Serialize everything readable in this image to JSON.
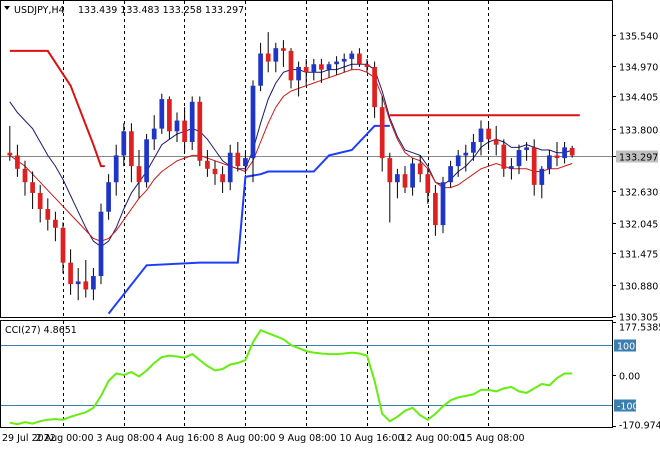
{
  "header": {
    "symbol": "USDJPY,H4",
    "ohlc": "133.439 133.483 133.258 133.297"
  },
  "indicator": {
    "label": "CCI(27) 4.8651",
    "axis_labels": [
      "177.5385",
      "100",
      "0.00",
      "-100",
      "-170.9744"
    ]
  },
  "colors": {
    "bull": "#1f35c8",
    "bear": "#e02020",
    "ma_fast": "#1a1a7a",
    "ma_slow": "#d01818",
    "stop_red": "#dd1111",
    "stop_blue": "#1e3cff",
    "cci": "#66ee11",
    "level_line": "#3a7fb0",
    "grid": "#000000",
    "price_tag": "#c0c0c0"
  },
  "chart_data": [
    {
      "type": "candlestick",
      "title": "USDJPY,H4",
      "ylim": [
        130.305,
        135.9
      ],
      "y_ticks": [
        "135.540",
        "134.970",
        "134.405",
        "133.800",
        "133.297",
        "132.630",
        "132.045",
        "131.475",
        "130.880",
        "130.305"
      ],
      "current_price": "133.297",
      "x_tick_labels": [
        "29 Jul 2022",
        "2 Aug 00:00",
        "3 Aug 08:00",
        "4 Aug 16:00",
        "8 Aug 00:00",
        "9 Aug 08:00",
        "10 Aug 16:00",
        "12 Aug 00:00",
        "15 Aug 08:00"
      ],
      "candles": [
        [
          133.35,
          133.85,
          133.2,
          133.3
        ],
        [
          133.3,
          133.5,
          132.9,
          133.05
        ],
        [
          133.05,
          133.2,
          132.55,
          132.8
        ],
        [
          132.8,
          133.0,
          132.3,
          132.6
        ],
        [
          132.6,
          132.75,
          132.05,
          132.3
        ],
        [
          132.3,
          132.5,
          131.9,
          132.1
        ],
        [
          132.1,
          132.25,
          131.7,
          131.95
        ],
        [
          131.95,
          132.05,
          131.1,
          131.3
        ],
        [
          131.3,
          131.55,
          130.7,
          130.9
        ],
        [
          130.9,
          131.2,
          130.6,
          130.95
        ],
        [
          130.95,
          131.35,
          130.65,
          130.8
        ],
        [
          130.8,
          131.2,
          130.6,
          131.05
        ],
        [
          131.05,
          132.4,
          130.9,
          132.25
        ],
        [
          132.25,
          132.95,
          132.1,
          132.8
        ],
        [
          132.8,
          133.5,
          132.55,
          133.3
        ],
        [
          133.3,
          133.9,
          133.1,
          133.75
        ],
        [
          133.75,
          133.9,
          132.8,
          133.1
        ],
        [
          133.1,
          133.4,
          132.5,
          132.8
        ],
        [
          132.8,
          133.7,
          132.7,
          133.6
        ],
        [
          133.6,
          134.05,
          133.4,
          133.8
        ],
        [
          133.8,
          134.45,
          133.7,
          134.35
        ],
        [
          134.35,
          134.4,
          133.6,
          133.75
        ],
        [
          133.75,
          134.1,
          133.55,
          133.95
        ],
        [
          133.95,
          134.2,
          133.35,
          133.55
        ],
        [
          133.55,
          134.4,
          133.4,
          134.3
        ],
        [
          134.3,
          134.4,
          133.1,
          133.2
        ],
        [
          133.2,
          133.4,
          132.9,
          133.05
        ],
        [
          133.05,
          133.2,
          132.75,
          132.95
        ],
        [
          132.95,
          133.1,
          132.6,
          132.8
        ],
        [
          132.8,
          133.5,
          132.65,
          133.35
        ],
        [
          133.35,
          133.55,
          133.0,
          133.1
        ],
        [
          133.1,
          133.4,
          132.95,
          133.25
        ],
        [
          133.25,
          134.7,
          132.8,
          134.6
        ],
        [
          134.6,
          135.4,
          134.5,
          135.2
        ],
        [
          135.2,
          135.6,
          134.85,
          135.05
        ],
        [
          135.05,
          135.4,
          134.85,
          135.3
        ],
        [
          135.3,
          135.45,
          134.95,
          135.25
        ],
        [
          135.25,
          135.3,
          134.55,
          134.7
        ],
        [
          134.7,
          135.05,
          134.4,
          134.95
        ],
        [
          134.95,
          135.1,
          134.6,
          134.85
        ],
        [
          134.85,
          135.1,
          134.7,
          135.0
        ],
        [
          135.0,
          135.1,
          134.65,
          134.9
        ],
        [
          134.9,
          135.05,
          134.75,
          135.0
        ],
        [
          135.0,
          135.15,
          134.8,
          135.05
        ],
        [
          135.05,
          135.2,
          134.85,
          135.1
        ],
        [
          135.1,
          135.25,
          134.9,
          135.2
        ],
        [
          135.2,
          135.3,
          134.95,
          135.0
        ],
        [
          135.0,
          135.1,
          134.85,
          134.95
        ],
        [
          134.95,
          135.05,
          134.0,
          134.2
        ],
        [
          134.2,
          134.4,
          133.0,
          133.25
        ],
        [
          133.25,
          133.35,
          132.05,
          132.8
        ],
        [
          132.8,
          133.05,
          132.5,
          132.95
        ],
        [
          132.95,
          133.1,
          132.6,
          132.7
        ],
        [
          132.7,
          133.25,
          132.55,
          133.15
        ],
        [
          133.15,
          133.3,
          132.8,
          132.95
        ],
        [
          132.95,
          133.05,
          132.4,
          132.6
        ],
        [
          132.6,
          132.75,
          131.8,
          132.0
        ],
        [
          132.0,
          132.9,
          131.85,
          132.8
        ],
        [
          132.8,
          133.2,
          132.7,
          133.1
        ],
        [
          133.1,
          133.4,
          132.9,
          133.3
        ],
        [
          133.3,
          133.5,
          133.0,
          133.35
        ],
        [
          133.35,
          133.7,
          133.2,
          133.55
        ],
        [
          133.55,
          133.95,
          133.3,
          133.8
        ],
        [
          133.8,
          133.9,
          133.4,
          133.6
        ],
        [
          133.6,
          133.85,
          133.3,
          133.5
        ],
        [
          133.5,
          133.6,
          132.9,
          133.05
        ],
        [
          133.05,
          133.25,
          132.85,
          133.1
        ],
        [
          133.1,
          133.5,
          132.95,
          133.4
        ],
        [
          133.4,
          133.55,
          133.2,
          133.45
        ],
        [
          133.45,
          133.6,
          132.55,
          132.75
        ],
        [
          132.75,
          133.1,
          132.5,
          133.05
        ],
        [
          133.05,
          133.4,
          132.95,
          133.3
        ],
        [
          133.3,
          133.55,
          133.1,
          133.25
        ],
        [
          133.25,
          133.55,
          133.15,
          133.45
        ],
        [
          133.44,
          133.48,
          133.26,
          133.3
        ]
      ],
      "ma_fast": [
        134.3,
        134.1,
        133.95,
        133.8,
        133.55,
        133.3,
        133.1,
        132.85,
        132.55,
        132.25,
        131.95,
        131.7,
        131.6,
        131.7,
        131.95,
        132.3,
        132.6,
        132.8,
        133.0,
        133.25,
        133.5,
        133.6,
        133.7,
        133.75,
        133.8,
        133.75,
        133.6,
        133.4,
        133.2,
        133.1,
        133.05,
        133.05,
        133.4,
        133.9,
        134.35,
        134.65,
        134.85,
        134.9,
        134.9,
        134.85,
        134.85,
        134.85,
        134.9,
        134.9,
        134.95,
        135.0,
        135.0,
        135.0,
        134.9,
        134.5,
        134.0,
        133.65,
        133.4,
        133.35,
        133.3,
        133.1,
        132.8,
        132.75,
        132.85,
        133.0,
        133.1,
        133.25,
        133.45,
        133.55,
        133.6,
        133.55,
        133.45,
        133.45,
        133.5,
        133.45,
        133.4,
        133.4,
        133.35,
        133.35,
        133.4
      ],
      "ma_slow": [
        133.3,
        133.2,
        133.1,
        132.95,
        132.8,
        132.65,
        132.5,
        132.35,
        132.2,
        132.05,
        131.9,
        131.75,
        131.7,
        131.75,
        131.9,
        132.1,
        132.3,
        132.5,
        132.65,
        132.85,
        133.0,
        133.1,
        133.2,
        133.25,
        133.3,
        133.3,
        133.25,
        133.2,
        133.15,
        133.1,
        133.05,
        133.0,
        133.2,
        133.55,
        133.9,
        134.2,
        134.4,
        134.5,
        134.55,
        134.6,
        134.65,
        134.7,
        134.75,
        134.8,
        134.85,
        134.9,
        134.9,
        134.85,
        134.75,
        134.4,
        133.95,
        133.6,
        133.35,
        133.25,
        133.2,
        133.05,
        132.8,
        132.7,
        132.7,
        132.75,
        132.85,
        132.95,
        133.05,
        133.1,
        133.15,
        133.1,
        133.05,
        133.05,
        133.05,
        133.0,
        133.0,
        133.05,
        133.05,
        133.1,
        133.15
      ],
      "stop_red": [
        [
          0,
          135.25
        ],
        [
          5,
          135.25
        ],
        [
          8,
          134.6
        ],
        [
          11,
          133.5
        ],
        [
          12,
          133.1
        ],
        [
          12.5,
          133.1
        ]
      ],
      "stop_red_2": [
        [
          50,
          134.05
        ],
        [
          75,
          134.05
        ]
      ],
      "stop_blue": [
        [
          13,
          130.35
        ],
        [
          18,
          131.25
        ],
        [
          25,
          131.3
        ],
        [
          30,
          131.3
        ],
        [
          31,
          132.9
        ],
        [
          33,
          132.95
        ],
        [
          34,
          133.0
        ],
        [
          40,
          133.0
        ],
        [
          42,
          133.3
        ],
        [
          45,
          133.4
        ],
        [
          48,
          133.85
        ],
        [
          50,
          133.85
        ]
      ]
    },
    {
      "type": "line",
      "title": "CCI(27) 4.8651",
      "ylim": [
        -170.9744,
        177.5385
      ],
      "levels": [
        100,
        0,
        -100
      ],
      "values": [
        -160,
        -165,
        -158,
        -163,
        -155,
        -150,
        -148,
        -150,
        -140,
        -132,
        -125,
        -110,
        -70,
        -20,
        5,
        0,
        10,
        -5,
        15,
        40,
        60,
        65,
        62,
        58,
        70,
        50,
        30,
        15,
        20,
        35,
        40,
        50,
        110,
        150,
        140,
        130,
        120,
        100,
        90,
        80,
        75,
        72,
        70,
        70,
        72,
        75,
        72,
        65,
        -20,
        -130,
        -155,
        -140,
        -120,
        -110,
        -135,
        -150,
        -130,
        -105,
        -85,
        -75,
        -70,
        -65,
        -50,
        -50,
        -55,
        -45,
        -40,
        -55,
        -60,
        -45,
        -30,
        -35,
        -10,
        5,
        5
      ]
    }
  ]
}
